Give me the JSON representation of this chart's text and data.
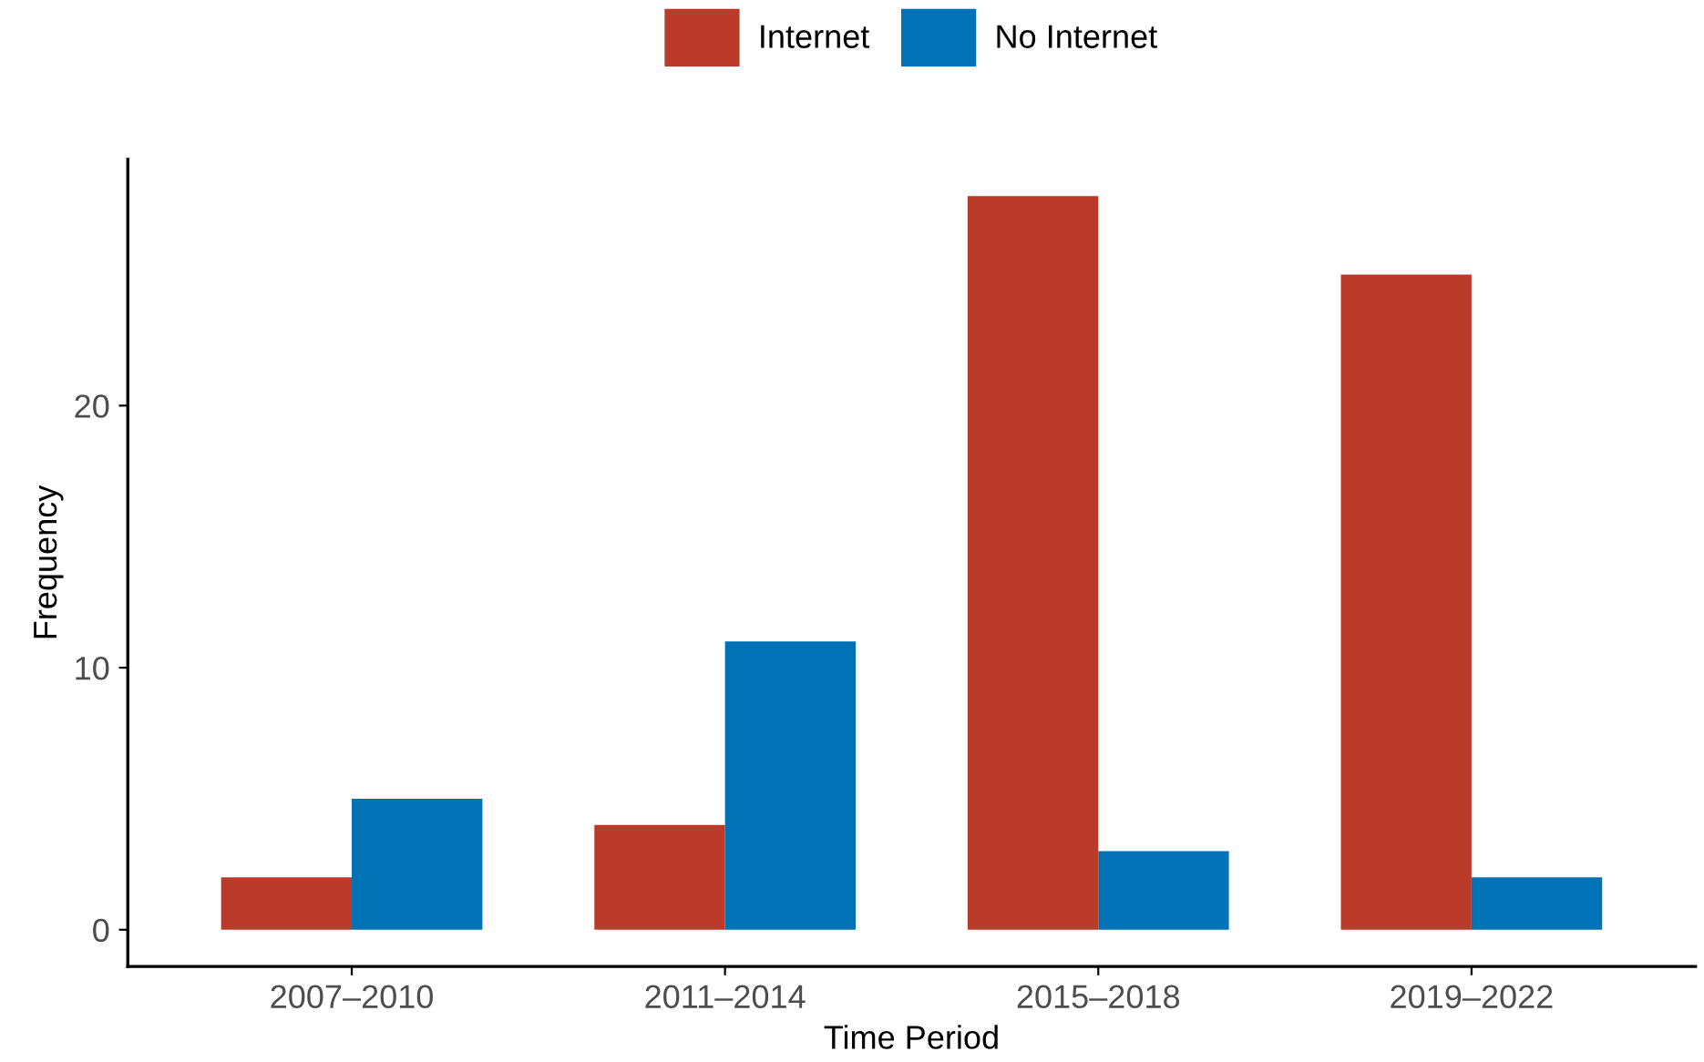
{
  "chart_data": {
    "type": "bar",
    "xlabel": "Time Period",
    "ylabel": "Frequency",
    "categories": [
      "2007–2010",
      "2011–2014",
      "2015–2018",
      "2019–2022"
    ],
    "series": [
      {
        "name": "Internet",
        "color": "#bb3b2b",
        "values": [
          2,
          4,
          28,
          25
        ]
      },
      {
        "name": "No Internet",
        "color": "#0072b5",
        "values": [
          5,
          11,
          3,
          2
        ]
      }
    ],
    "ylim": [
      -1.4,
      29.4
    ],
    "yticks": [
      0,
      10,
      20
    ],
    "grid": false,
    "legend": "top"
  }
}
